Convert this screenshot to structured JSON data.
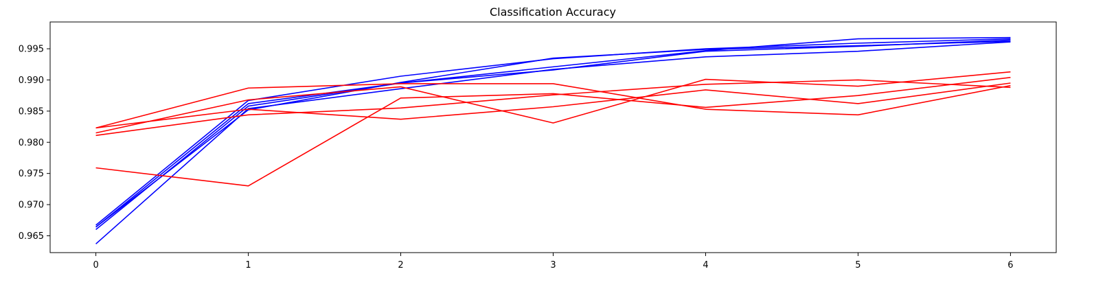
{
  "chart_data": {
    "type": "line",
    "title": "Classification Accuracy",
    "xlabel": "",
    "ylabel": "",
    "x": [
      0,
      1,
      2,
      3,
      4,
      5,
      6
    ],
    "xticks": [
      "0",
      "1",
      "2",
      "3",
      "4",
      "5",
      "6"
    ],
    "yticks": [
      "0.965",
      "0.970",
      "0.975",
      "0.980",
      "0.985",
      "0.990",
      "0.995"
    ],
    "ylim": [
      0.9623,
      0.9993
    ],
    "xlim": [
      -0.3,
      6.3
    ],
    "grid": false,
    "colors": {
      "train": "#0000ff",
      "test": "#ff0000"
    },
    "series": [
      {
        "color": "#0000ff",
        "values": [
          0.9637,
          0.9854,
          0.9886,
          0.9917,
          0.9937,
          0.9946,
          0.9961
        ]
      },
      {
        "color": "#0000ff",
        "values": [
          0.966,
          0.9858,
          0.9895,
          0.9916,
          0.9946,
          0.9954,
          0.9964
        ]
      },
      {
        "color": "#0000ff",
        "values": [
          0.9664,
          0.9862,
          0.9895,
          0.9921,
          0.9947,
          0.9966,
          0.9968
        ]
      },
      {
        "color": "#0000ff",
        "values": [
          0.9667,
          0.9867,
          0.9906,
          0.9934,
          0.995,
          0.9959,
          0.9966
        ]
      },
      {
        "color": "#0000ff",
        "values": [
          0.9664,
          0.9852,
          0.9896,
          0.9935,
          0.9949,
          0.9955,
          0.9962
        ]
      },
      {
        "color": "#ff0000",
        "values": [
          0.9823,
          0.9887,
          0.9894,
          0.9894,
          0.9853,
          0.9844,
          0.9891
        ]
      },
      {
        "color": "#ff0000",
        "values": [
          0.9823,
          0.9853,
          0.9837,
          0.9857,
          0.9884,
          0.9862,
          0.9895
        ]
      },
      {
        "color": "#ff0000",
        "values": [
          0.9815,
          0.9868,
          0.9889,
          0.9831,
          0.9901,
          0.989,
          0.9913
        ]
      },
      {
        "color": "#ff0000",
        "values": [
          0.9811,
          0.9844,
          0.9855,
          0.9876,
          0.9893,
          0.99,
          0.9888
        ]
      },
      {
        "color": "#ff0000",
        "values": [
          0.9759,
          0.973,
          0.9871,
          0.9878,
          0.9856,
          0.9875,
          0.9904
        ]
      }
    ]
  }
}
